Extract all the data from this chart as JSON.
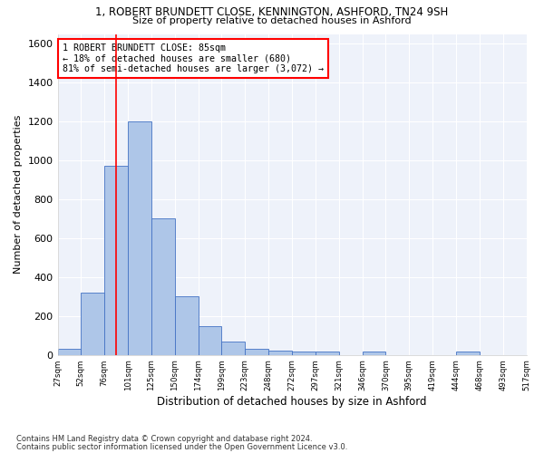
{
  "title_line1": "1, ROBERT BRUNDETT CLOSE, KENNINGTON, ASHFORD, TN24 9SH",
  "title_line2": "Size of property relative to detached houses in Ashford",
  "xlabel": "Distribution of detached houses by size in Ashford",
  "ylabel": "Number of detached properties",
  "footnote1": "Contains HM Land Registry data © Crown copyright and database right 2024.",
  "footnote2": "Contains public sector information licensed under the Open Government Licence v3.0.",
  "bar_values": [
    30,
    320,
    970,
    1200,
    700,
    300,
    150,
    70,
    30,
    20,
    15,
    15,
    0,
    15,
    0,
    0,
    0,
    15,
    0,
    0
  ],
  "bin_labels": [
    "27sqm",
    "52sqm",
    "76sqm",
    "101sqm",
    "125sqm",
    "150sqm",
    "174sqm",
    "199sqm",
    "223sqm",
    "248sqm",
    "272sqm",
    "297sqm",
    "321sqm",
    "346sqm",
    "370sqm",
    "395sqm",
    "419sqm",
    "444sqm",
    "468sqm",
    "493sqm",
    "517sqm"
  ],
  "bar_color": "#aec6e8",
  "bar_edge_color": "#4472c4",
  "ylim": [
    0,
    1650
  ],
  "yticks": [
    0,
    200,
    400,
    600,
    800,
    1000,
    1200,
    1400,
    1600
  ],
  "property_line_x": 2.0,
  "annotation_text": "1 ROBERT BRUNDETT CLOSE: 85sqm\n← 18% of detached houses are smaller (680)\n81% of semi-detached houses are larger (3,072) →",
  "annotation_box_color": "white",
  "annotation_box_edge_color": "red",
  "vline_color": "red",
  "background_color": "#eef2fa",
  "grid_color": "white",
  "figsize": [
    6.0,
    5.0
  ],
  "dpi": 100
}
